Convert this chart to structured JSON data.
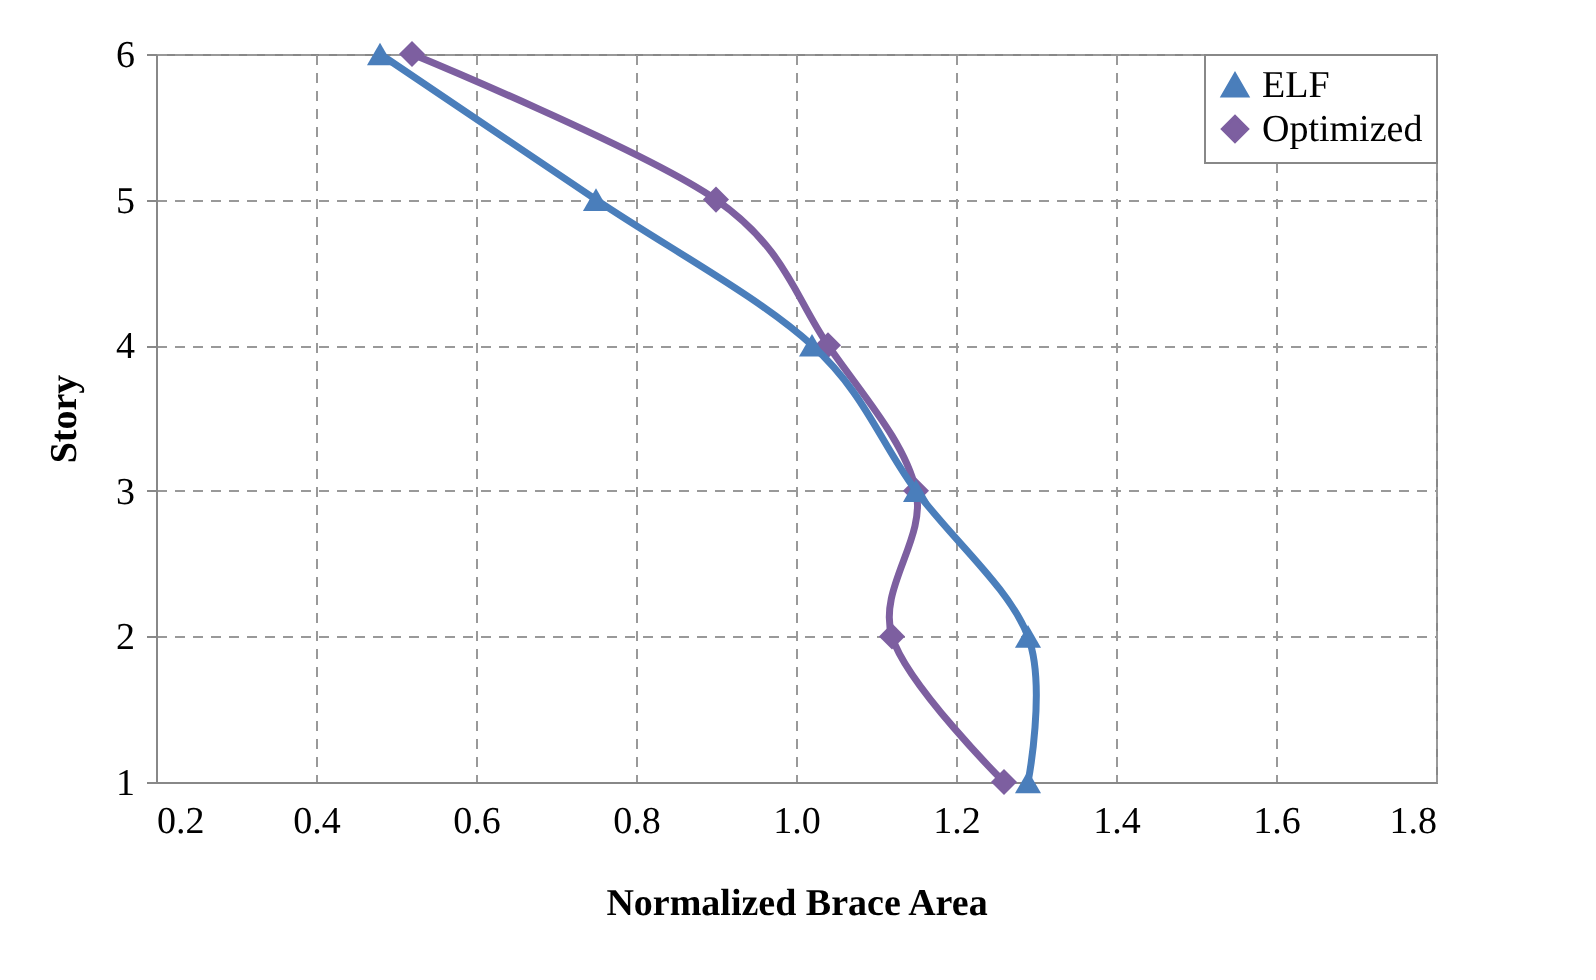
{
  "chart_data": {
    "type": "line",
    "xlabel": "Normalized Brace Area",
    "ylabel": "Story",
    "series": [
      {
        "name": "ELF",
        "color": "#4a7ebb",
        "marker": "triangle",
        "x": [
          0.48,
          0.75,
          1.02,
          1.15,
          1.29,
          1.29
        ],
        "values": [
          6,
          5,
          4,
          3,
          2,
          1
        ]
      },
      {
        "name": "Optimized",
        "color": "#7d5fa0",
        "marker": "diamond",
        "x": [
          0.52,
          0.9,
          1.04,
          1.15,
          1.12,
          1.26
        ],
        "values": [
          6,
          5,
          4,
          3,
          2,
          1
        ]
      }
    ],
    "xlim": [
      0.2,
      1.8
    ],
    "xticks": [
      {
        "value": 0.2,
        "label": "0.2"
      },
      {
        "value": 0.4,
        "label": "0.4"
      },
      {
        "value": 0.6,
        "label": "0.6"
      },
      {
        "value": 0.8,
        "label": "0.8"
      },
      {
        "value": 1.0,
        "label": "1.0"
      },
      {
        "value": 1.2,
        "label": "1.2"
      },
      {
        "value": 1.4,
        "label": "1.4"
      },
      {
        "value": 1.6,
        "label": "1.6"
      },
      {
        "value": 1.8,
        "label": "1.8"
      }
    ],
    "ylim": [
      1,
      6
    ],
    "yticks": [
      1,
      2,
      3,
      4,
      5,
      6
    ],
    "grid": true,
    "legend": "top right",
    "line_style": "solid"
  }
}
